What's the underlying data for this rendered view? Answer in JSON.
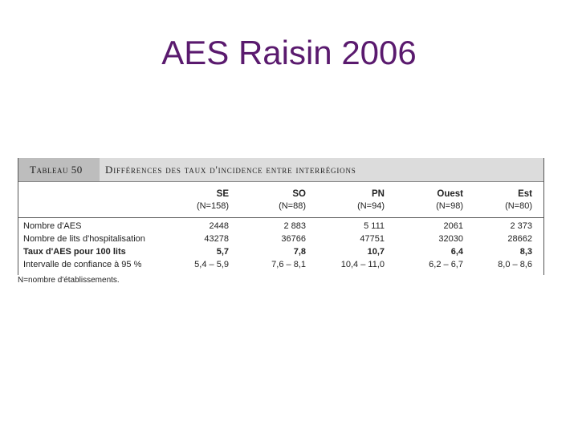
{
  "slide": {
    "title": "AES Raisin 2006"
  },
  "table": {
    "label": "Tableau 50",
    "caption": "Différences des taux d'incidence entre interrégions",
    "columns": [
      {
        "code": "SE",
        "n": "(N=158)"
      },
      {
        "code": "SO",
        "n": "(N=88)"
      },
      {
        "code": "PN",
        "n": "(N=94)"
      },
      {
        "code": "Ouest",
        "n": "(N=98)"
      },
      {
        "code": "Est",
        "n": "(N=80)"
      }
    ],
    "rows": [
      {
        "label": "Nombre d'AES",
        "values": [
          "2448",
          "2 883",
          "5 111",
          "2061",
          "2 373"
        ]
      },
      {
        "label": "Nombre de lits d'hospitalisation",
        "values": [
          "43278",
          "36766",
          "47751",
          "32030",
          "28662"
        ]
      },
      {
        "label": "Taux d'AES pour 100 lits",
        "values": [
          "5,7",
          "7,8",
          "10,7",
          "6,4",
          "8,3"
        ]
      },
      {
        "label": "Intervalle de confiance à 95 %",
        "values": [
          "5,4 – 5,9",
          "7,6 – 8,1",
          "10,4 – 11,0",
          "6,2 – 6,7",
          "8,0 – 8,6"
        ]
      }
    ],
    "footnote": "N=nombre d'établissements."
  }
}
